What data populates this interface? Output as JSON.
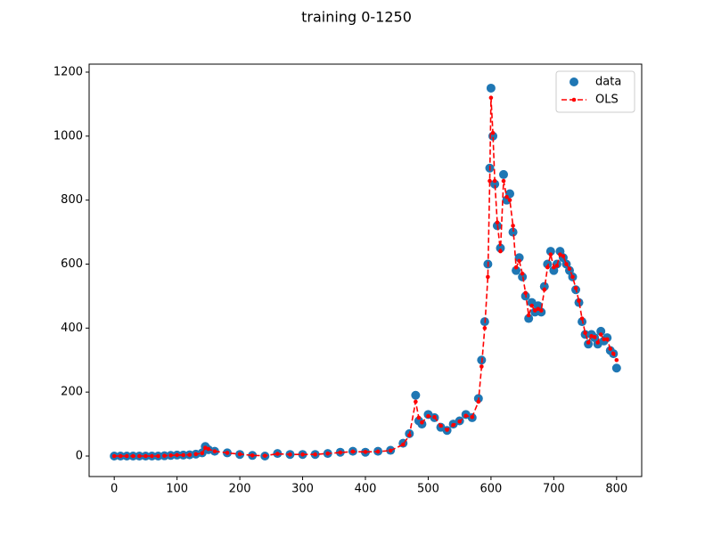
{
  "chart_data": {
    "type": "scatter-line",
    "title": "training 0-1250",
    "x": [
      0,
      10,
      20,
      30,
      40,
      50,
      60,
      70,
      80,
      90,
      100,
      110,
      120,
      130,
      140,
      145,
      150,
      160,
      180,
      200,
      220,
      240,
      260,
      280,
      300,
      320,
      340,
      360,
      380,
      400,
      420,
      440,
      460,
      470,
      480,
      485,
      490,
      500,
      510,
      520,
      530,
      540,
      550,
      560,
      570,
      580,
      585,
      590,
      595,
      598,
      600,
      603,
      606,
      610,
      615,
      620,
      625,
      630,
      635,
      640,
      645,
      650,
      655,
      660,
      665,
      670,
      675,
      680,
      685,
      690,
      695,
      700,
      705,
      710,
      715,
      720,
      725,
      730,
      735,
      740,
      745,
      750,
      755,
      760,
      765,
      770,
      775,
      780,
      785,
      790,
      795,
      800
    ],
    "series": [
      {
        "name": "data",
        "color": "#1f77b4",
        "style": "markers",
        "values": [
          0,
          0,
          0,
          0,
          0,
          0,
          0,
          0,
          1,
          2,
          3,
          3,
          4,
          6,
          10,
          30,
          20,
          15,
          10,
          5,
          2,
          0,
          8,
          5,
          5,
          5,
          8,
          12,
          15,
          12,
          15,
          18,
          40,
          70,
          190,
          110,
          100,
          130,
          120,
          90,
          80,
          100,
          110,
          130,
          120,
          180,
          300,
          420,
          600,
          900,
          1150,
          1000,
          850,
          720,
          650,
          880,
          800,
          820,
          700,
          580,
          620,
          560,
          500,
          430,
          480,
          450,
          470,
          450,
          530,
          600,
          640,
          580,
          600,
          640,
          620,
          600,
          580,
          560,
          520,
          480,
          420,
          380,
          350,
          380,
          370,
          350,
          390,
          360,
          370,
          330,
          320,
          275
        ]
      },
      {
        "name": "OLS",
        "color": "#ff0000",
        "style": "dashed-line-dots",
        "values": [
          0,
          0,
          0,
          0,
          0,
          0,
          0,
          0,
          1,
          2,
          3,
          3,
          4,
          6,
          9,
          26,
          22,
          15,
          10,
          6,
          2,
          1,
          7,
          5,
          5,
          5,
          8,
          11,
          14,
          13,
          14,
          17,
          36,
          65,
          170,
          120,
          105,
          125,
          122,
          95,
          82,
          97,
          108,
          126,
          122,
          170,
          280,
          400,
          560,
          860,
          1120,
          1010,
          860,
          730,
          640,
          860,
          810,
          800,
          720,
          590,
          610,
          570,
          510,
          440,
          470,
          455,
          460,
          455,
          520,
          590,
          630,
          590,
          595,
          630,
          625,
          600,
          585,
          560,
          525,
          485,
          430,
          385,
          355,
          375,
          372,
          355,
          380,
          365,
          365,
          335,
          320,
          300
        ]
      }
    ],
    "xlim": [
      -40,
      840
    ],
    "ylim": [
      -64,
      1225
    ],
    "xticks": [
      0,
      100,
      200,
      300,
      400,
      500,
      600,
      700,
      800
    ],
    "yticks": [
      0,
      200,
      400,
      600,
      800,
      1000,
      1200
    ],
    "legend": "upper right"
  }
}
